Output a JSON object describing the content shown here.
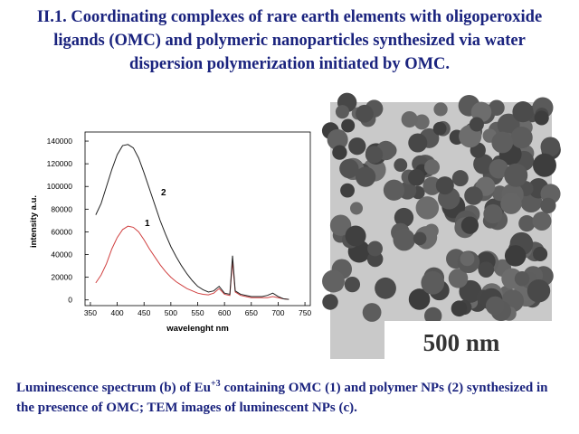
{
  "title": "II.1. Coordinating complexes of rare earth elements with oligoperoxide ligands (OMC) and polymeric nanoparticles synthesized via water dispersion polymerization initiated by OMC.",
  "chart_data": {
    "type": "line",
    "x": [
      360,
      370,
      380,
      390,
      400,
      410,
      420,
      430,
      440,
      450,
      460,
      470,
      480,
      490,
      500,
      510,
      520,
      530,
      540,
      550,
      560,
      570,
      580,
      590,
      600,
      610,
      615,
      620,
      630,
      640,
      650,
      660,
      670,
      680,
      690,
      700,
      710,
      720
    ],
    "series": [
      {
        "name": "1",
        "color": "#d04040",
        "values": [
          15000,
          22000,
          32000,
          45000,
          55000,
          62000,
          65000,
          64000,
          60000,
          53000,
          45000,
          38000,
          31000,
          25000,
          20000,
          16000,
          13000,
          10000,
          8000,
          6000,
          5000,
          4500,
          6000,
          10000,
          5000,
          4000,
          34000,
          7000,
          4000,
          3000,
          2000,
          2000,
          2000,
          2000,
          3000,
          2000,
          1000,
          500
        ]
      },
      {
        "name": "2",
        "color": "#222222",
        "values": [
          75000,
          85000,
          100000,
          115000,
          128000,
          136000,
          137000,
          134000,
          125000,
          112000,
          98000,
          84000,
          70000,
          58000,
          47000,
          38000,
          30000,
          23000,
          17000,
          12000,
          9000,
          7000,
          8000,
          12000,
          6000,
          5000,
          39000,
          8000,
          5000,
          4000,
          3000,
          3000,
          3000,
          4000,
          6000,
          3000,
          1000,
          500
        ]
      }
    ],
    "x_label": "wavelenght nm",
    "y_label": "intensity a.u.",
    "xlim": [
      340,
      760
    ],
    "xticks": [
      350,
      400,
      450,
      500,
      550,
      600,
      650,
      700,
      750
    ],
    "ylim": [
      -5000,
      148000
    ],
    "yticks": [
      0,
      20000,
      40000,
      60000,
      80000,
      100000,
      120000,
      140000
    ]
  },
  "image": {
    "scale_label": "500 nm"
  },
  "caption": [
    "Luminescence spectrum (b) of Eu",
    "+3",
    " containing OMC (1) and polymer NPs (2) synthesized in the presence of OMC; TEM images of luminescent NPs (c)."
  ]
}
